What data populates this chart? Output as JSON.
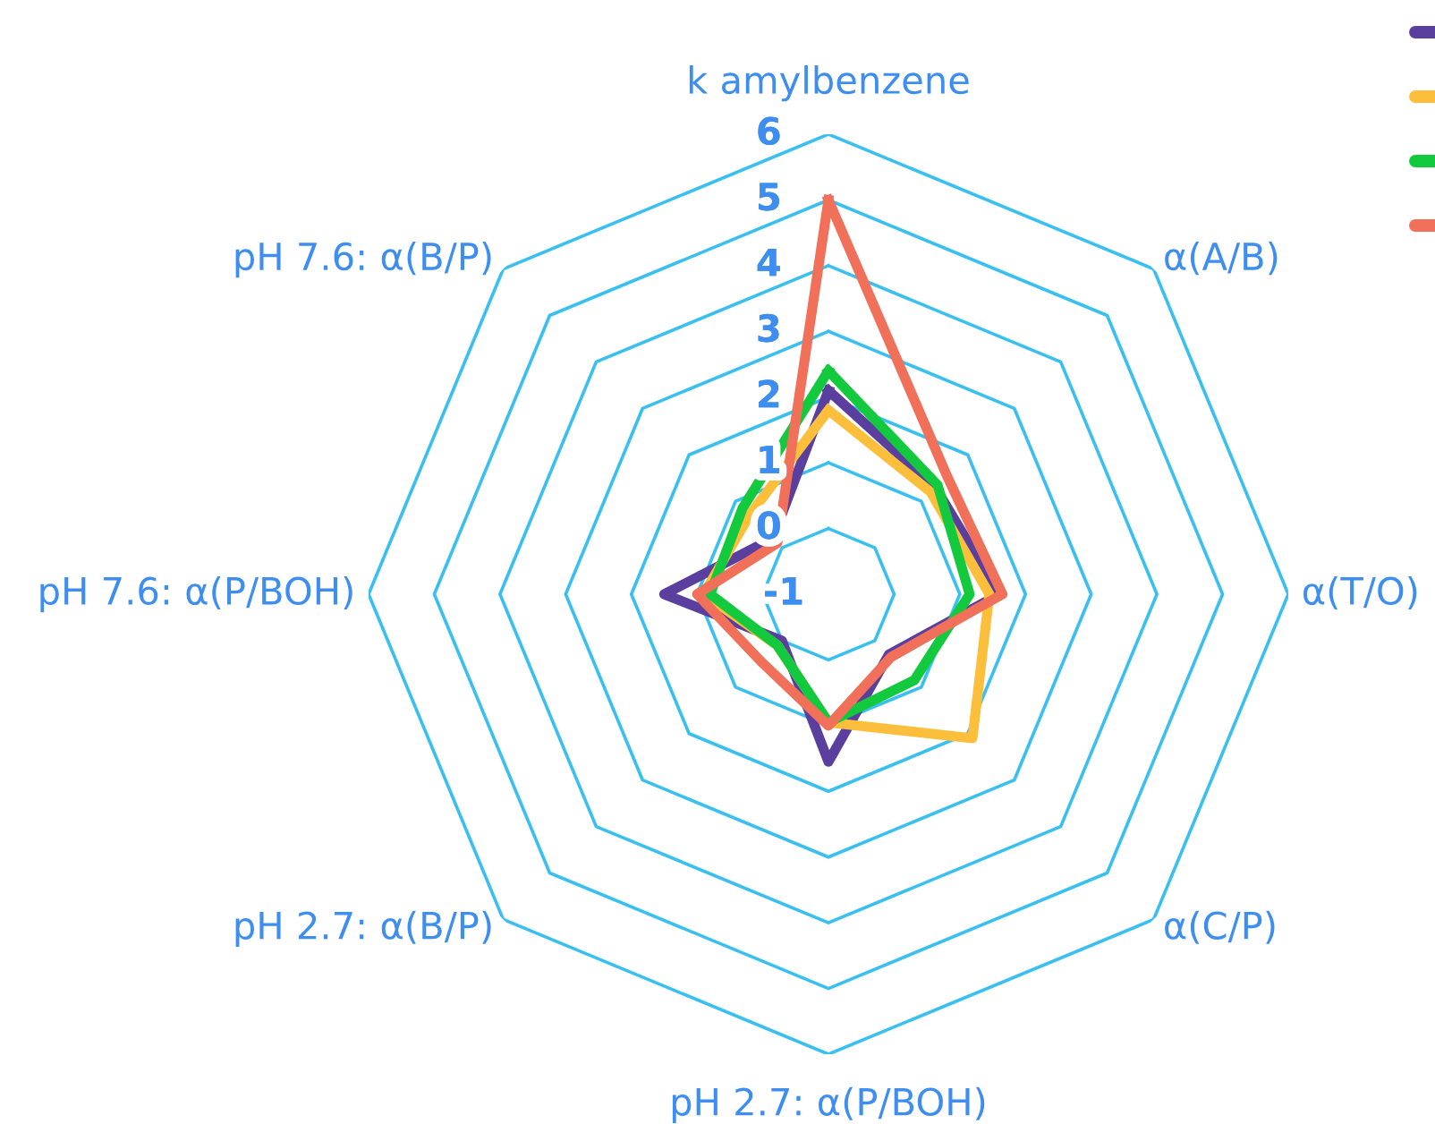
{
  "chart_data": {
    "type": "radar",
    "categories": [
      "k amylbenzene",
      "α(A/B)",
      "α(T/O)",
      "α(C/P)",
      "pH 2.7: α(P/BOH)",
      "pH 2.7: α(B/P)",
      "pH 7.6: α(P/BOH)",
      "pH 7.6: α(B/P)"
    ],
    "series": [
      {
        "color": "#5b3f9e",
        "values": [
          2.1,
          1.3,
          1.6,
          0.3,
          1.55,
          0.0,
          1.5,
          0.2
        ]
      },
      {
        "color": "#fbbf3b",
        "values": [
          1.8,
          1.2,
          1.45,
          2.1,
          0.95,
          0.1,
          0.9,
          0.7
        ]
      },
      {
        "color": "#13c93e",
        "values": [
          2.4,
          1.35,
          1.15,
          0.85,
          0.95,
          0.1,
          0.8,
          0.85
        ]
      },
      {
        "color": "#f0705a",
        "values": [
          5.0,
          1.55,
          1.65,
          0.35,
          1.0,
          0.45,
          1.0,
          0.1
        ]
      }
    ],
    "ylim": [
      -1,
      6
    ],
    "yticks": [
      -1,
      0,
      1,
      2,
      3,
      4,
      5,
      6
    ],
    "grid": true
  }
}
